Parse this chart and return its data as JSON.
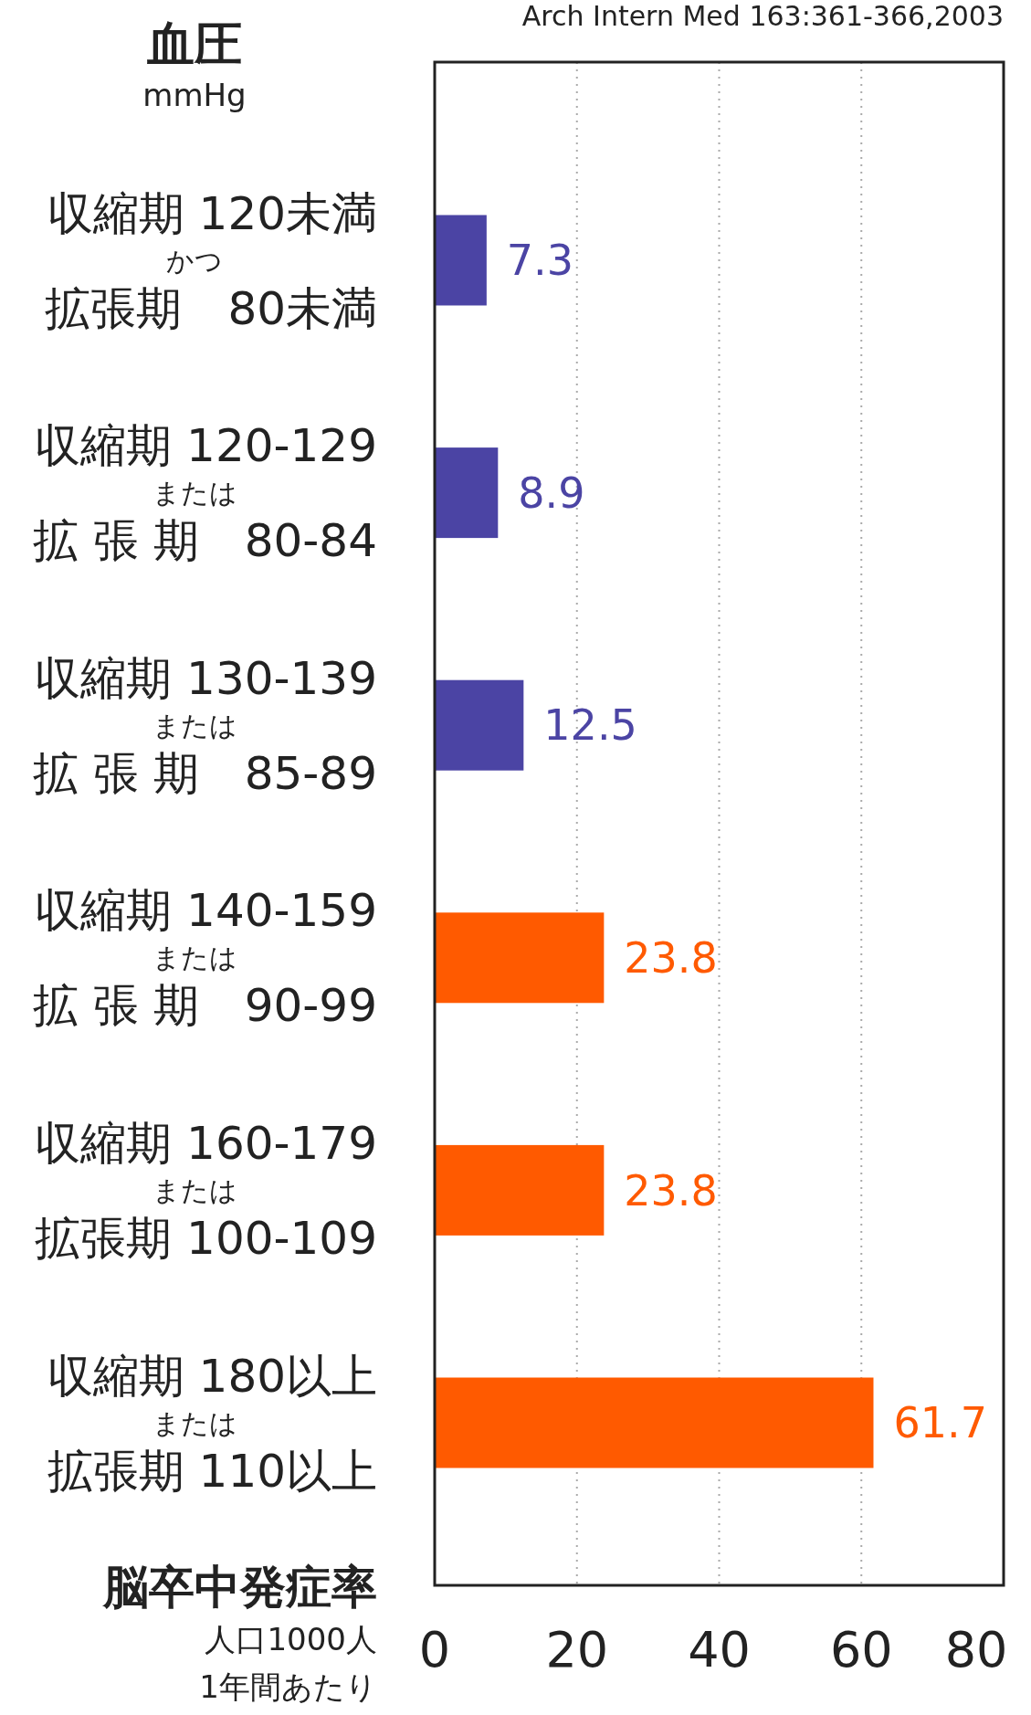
{
  "chart_data": {
    "type": "bar",
    "orientation": "horizontal",
    "ylabel": "血圧\nmmHg",
    "xlabel": "脳卒中発症率",
    "annotations": [
      "Arch Intern Med 163:361-366,2003",
      "人口1000人",
      "1年間あたり"
    ],
    "categories": [
      "収縮期 120未満かつ拡張期　80未満",
      "収縮期 120-129または拡 張 期　80-84",
      "収縮期 130-139または拡 張 期　85-89",
      "収縮期 140-159または拡 張 期　90-99",
      "収縮期 160-179または拡張期 100-109",
      "収縮期 180以上または拡張期 110以上"
    ],
    "values": [
      7.3,
      8.9,
      12.5,
      23.8,
      23.8,
      61.7
    ],
    "colors": [
      "#4b44a4",
      "#4b44a4",
      "#4b44a4",
      "#ff5a00",
      "#ff5a00",
      "#ff5a00"
    ],
    "xlim": [
      0,
      80
    ],
    "xticks": [
      0,
      20,
      40,
      60,
      80
    ],
    "grid": "x",
    "data_labels": true
  }
}
